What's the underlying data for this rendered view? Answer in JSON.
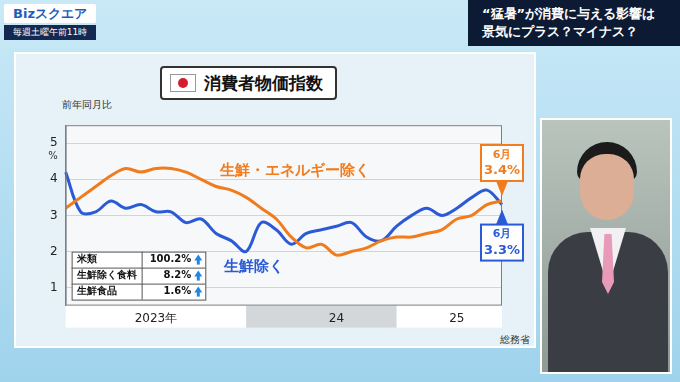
{
  "page": {
    "program": "Bizスクエア",
    "schedule": "毎週土曜午前11時",
    "headline": [
      "“猛暑”が消費に与える影響は",
      "景気にプラス？マイナス？"
    ]
  },
  "chart_data": {
    "type": "line",
    "title": "消費者物価指数",
    "subtitle": "前年同月比",
    "ylabel": "%",
    "source": "総務省",
    "categories": [
      null,
      null,
      null,
      null,
      null,
      null,
      "2023年",
      null,
      null,
      null,
      null,
      null,
      null,
      null,
      null,
      null,
      null,
      null,
      "24",
      null,
      null,
      null,
      null,
      null,
      null,
      null,
      "25",
      null,
      null,
      null
    ],
    "series": [
      {
        "name": "生鮮・エネルギー除く",
        "color": "#f07c1e",
        "values": [
          3.2,
          3.5,
          3.8,
          4.1,
          4.3,
          4.2,
          4.3,
          4.3,
          4.2,
          4.0,
          3.8,
          3.7,
          3.5,
          3.2,
          2.9,
          2.4,
          2.1,
          2.2,
          1.9,
          2.0,
          2.1,
          2.3,
          2.4,
          2.4,
          2.5,
          2.6,
          2.9,
          3.0,
          3.3,
          3.4
        ]
      },
      {
        "name": "生鮮除く",
        "color": "#2a5ad6",
        "values": [
          4.2,
          3.1,
          3.1,
          3.4,
          3.2,
          3.3,
          3.1,
          3.1,
          2.8,
          2.9,
          2.5,
          2.3,
          2.0,
          2.8,
          2.6,
          2.2,
          2.5,
          2.6,
          2.7,
          2.8,
          2.4,
          2.3,
          2.7,
          3.0,
          3.2,
          3.0,
          3.2,
          3.5,
          3.7,
          3.3
        ]
      }
    ],
    "ylim": [
      0.5,
      5.5
    ],
    "yticks": [
      1,
      2,
      3,
      4,
      5
    ],
    "grid": true,
    "annotations": [
      {
        "series": "生鮮・エネルギー除く",
        "text": "6月",
        "value_label": "3.4%"
      },
      {
        "series": "生鮮除く",
        "text": "6月",
        "value_label": "3.3%"
      }
    ],
    "table": {
      "rows": [
        [
          "米類",
          "100.2%"
        ],
        [
          "生鮮除く食料",
          "8.2%"
        ],
        [
          "生鮮食品",
          "1.6%"
        ]
      ]
    }
  }
}
